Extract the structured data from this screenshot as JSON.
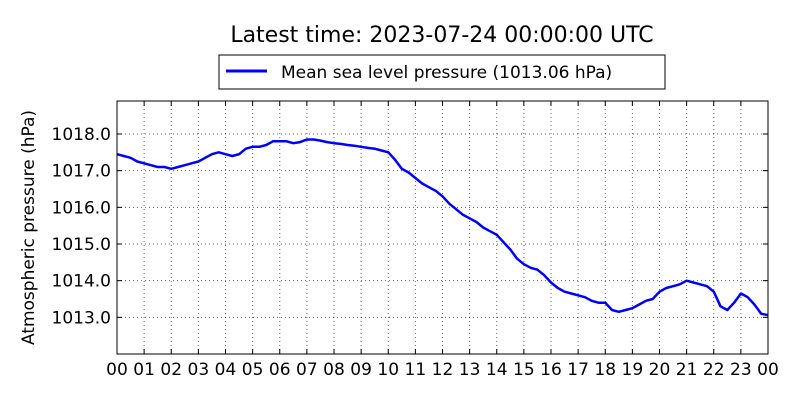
{
  "chart_data": {
    "type": "line",
    "title": "Latest time: 2023-07-24 00:00:00 UTC",
    "ylabel": "Atmospheric pressure (hPa)",
    "xlabel": "",
    "x_ticks": [
      "00",
      "01",
      "02",
      "03",
      "04",
      "05",
      "06",
      "07",
      "08",
      "09",
      "10",
      "11",
      "12",
      "13",
      "14",
      "15",
      "16",
      "17",
      "18",
      "19",
      "20",
      "21",
      "22",
      "23",
      "00"
    ],
    "y_ticks": [
      "1013.0",
      "1014.0",
      "1015.0",
      "1016.0",
      "1017.0",
      "1018.0"
    ],
    "xlim": [
      0,
      24
    ],
    "ylim": [
      1012.0,
      1018.9
    ],
    "grid": true,
    "legend_position": "top-center",
    "series": [
      {
        "name": "Mean sea level pressure (1013.06 hPa)",
        "color": "#0000ff",
        "x": [
          0,
          0.25,
          0.5,
          0.75,
          1.0,
          1.25,
          1.5,
          1.75,
          2.0,
          2.25,
          2.5,
          2.75,
          3.0,
          3.25,
          3.5,
          3.75,
          4.0,
          4.25,
          4.5,
          4.75,
          5.0,
          5.25,
          5.5,
          5.75,
          6.0,
          6.25,
          6.5,
          6.75,
          7.0,
          7.25,
          7.5,
          7.75,
          8.0,
          8.25,
          8.5,
          8.75,
          9.0,
          9.25,
          9.5,
          9.75,
          10.0,
          10.25,
          10.5,
          10.75,
          11.0,
          11.25,
          11.5,
          11.75,
          12.0,
          12.25,
          12.5,
          12.75,
          13.0,
          13.25,
          13.5,
          13.75,
          14.0,
          14.25,
          14.5,
          14.75,
          15.0,
          15.25,
          15.5,
          15.75,
          16.0,
          16.25,
          16.5,
          16.75,
          17.0,
          17.25,
          17.5,
          17.75,
          18.0,
          18.25,
          18.5,
          18.75,
          19.0,
          19.25,
          19.5,
          19.75,
          20.0,
          20.25,
          20.5,
          20.75,
          21.0,
          21.25,
          21.5,
          21.75,
          22.0,
          22.25,
          22.5,
          22.75,
          23.0,
          23.25,
          23.5,
          23.75,
          24.0
        ],
        "values": [
          1017.45,
          1017.4,
          1017.35,
          1017.25,
          1017.2,
          1017.15,
          1017.1,
          1017.1,
          1017.05,
          1017.1,
          1017.15,
          1017.2,
          1017.25,
          1017.35,
          1017.45,
          1017.5,
          1017.45,
          1017.4,
          1017.45,
          1017.6,
          1017.65,
          1017.65,
          1017.7,
          1017.8,
          1017.8,
          1017.8,
          1017.75,
          1017.78,
          1017.85,
          1017.85,
          1017.82,
          1017.78,
          1017.75,
          1017.73,
          1017.7,
          1017.68,
          1017.65,
          1017.62,
          1017.6,
          1017.55,
          1017.5,
          1017.3,
          1017.05,
          1016.95,
          1016.8,
          1016.65,
          1016.55,
          1016.45,
          1016.3,
          1016.1,
          1015.95,
          1015.8,
          1015.7,
          1015.6,
          1015.45,
          1015.35,
          1015.25,
          1015.05,
          1014.85,
          1014.6,
          1014.45,
          1014.35,
          1014.3,
          1014.15,
          1013.95,
          1013.8,
          1013.7,
          1013.65,
          1013.6,
          1013.55,
          1013.45,
          1013.4,
          1013.4,
          1013.2,
          1013.15,
          1013.2,
          1013.25,
          1013.35,
          1013.45,
          1013.5,
          1013.7,
          1013.8,
          1013.85,
          1013.9,
          1014.0,
          1013.95,
          1013.9,
          1013.85,
          1013.7,
          1013.3,
          1013.2,
          1013.4,
          1013.65,
          1013.55,
          1013.35,
          1013.1,
          1013.06
        ]
      }
    ]
  }
}
